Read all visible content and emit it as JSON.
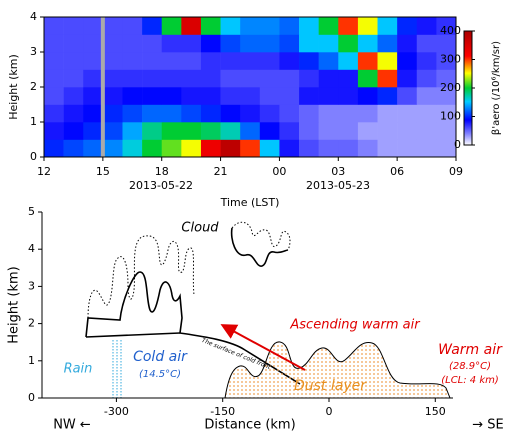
{
  "chart_data": [
    {
      "type": "heatmap",
      "ylabel": "Height (km)",
      "xlabel": "Time (LST)",
      "colorbar_label": "β'aero (/10⁶/km/sr)",
      "annotations": [
        "2013-05-22",
        "2013-05-23"
      ],
      "xlim": [
        12,
        33
      ],
      "ylim": [
        0,
        4
      ],
      "clim": [
        0,
        400
      ],
      "xticks": [
        12,
        15,
        18,
        21,
        {
          "value": 24,
          "label": "00"
        },
        {
          "value": 27,
          "label": "03"
        },
        {
          "value": 30,
          "label": "06"
        },
        {
          "value": 33,
          "label": "09"
        }
      ],
      "yticks": [
        0,
        1,
        2,
        3,
        4
      ],
      "cticks": [
        0,
        100,
        200,
        300,
        400
      ],
      "z": [
        [
          100,
          110,
          120,
          130,
          160,
          200,
          220,
          250,
          330,
          380,
          300,
          150,
          80,
          60,
          50,
          50,
          40,
          30,
          30,
          30,
          30
        ],
        [
          80,
          90,
          100,
          110,
          140,
          180,
          200,
          200,
          190,
          170,
          120,
          90,
          70,
          50,
          40,
          40,
          30,
          30,
          30,
          30,
          30
        ],
        [
          70,
          80,
          90,
          100,
          110,
          120,
          120,
          110,
          100,
          90,
          80,
          70,
          60,
          50,
          40,
          40,
          40,
          30,
          30,
          30,
          30
        ],
        [
          60,
          70,
          80,
          80,
          90,
          90,
          90,
          80,
          80,
          70,
          70,
          60,
          60,
          80,
          80,
          80,
          90,
          100,
          60,
          40,
          40
        ],
        [
          60,
          60,
          70,
          70,
          70,
          70,
          70,
          70,
          70,
          60,
          60,
          60,
          60,
          70,
          80,
          80,
          200,
          300,
          80,
          60,
          50
        ],
        [
          60,
          60,
          60,
          60,
          60,
          60,
          60,
          60,
          70,
          70,
          70,
          70,
          80,
          100,
          120,
          150,
          300,
          250,
          90,
          70,
          60
        ],
        [
          60,
          60,
          60,
          60,
          60,
          60,
          70,
          70,
          90,
          110,
          120,
          120,
          110,
          150,
          150,
          200,
          150,
          120,
          80,
          60,
          60
        ],
        [
          60,
          60,
          60,
          60,
          60,
          100,
          200,
          350,
          200,
          150,
          130,
          130,
          120,
          150,
          200,
          300,
          250,
          150,
          100,
          80,
          70
        ]
      ]
    },
    {
      "type": "schematic",
      "ylabel": "Height (km)",
      "xlabel": "Distance (km)",
      "xlim": [
        -405,
        175
      ],
      "ylim": [
        0,
        5
      ],
      "xticks": [
        -300,
        -150,
        0,
        150
      ],
      "yticks": [
        0,
        1,
        2,
        3,
        4,
        5
      ],
      "labels": {
        "cloud": "Cloud",
        "ascending": "Ascending warm air",
        "warm": "Warm air",
        "warm_temp": "(28.9°C)",
        "lcl": "(LCL: 4 km)",
        "cold": "Cold air",
        "cold_temp": "(14.5°C)",
        "rain": "Rain",
        "dust": "Dust layer",
        "front": "The surface of cold front",
        "nw": "NW ←",
        "se": "→ SE"
      }
    }
  ]
}
